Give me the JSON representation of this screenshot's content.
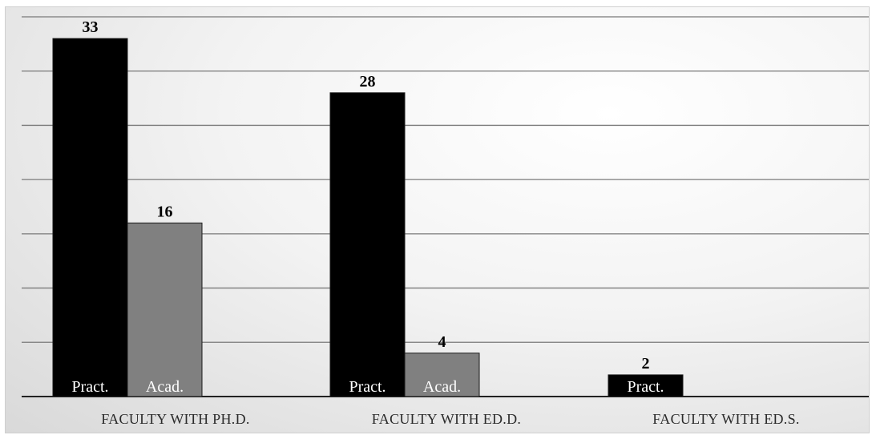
{
  "chart_data": {
    "type": "bar",
    "categories": [
      "FACULTY WITH PH.D.",
      "FACULTY WITH ED.D.",
      "FACULTY WITH ED.S."
    ],
    "series": [
      {
        "name": "Pract.",
        "values": [
          33,
          28,
          2
        ],
        "color": "#000000"
      },
      {
        "name": "Acad.",
        "values": [
          16,
          4,
          null
        ],
        "color": "#808080"
      }
    ],
    "ylim": [
      0,
      35
    ],
    "gridlines": [
      0,
      5,
      10,
      15,
      20,
      25,
      30,
      35
    ],
    "grid": true,
    "legend": "none",
    "data_labels": true
  }
}
